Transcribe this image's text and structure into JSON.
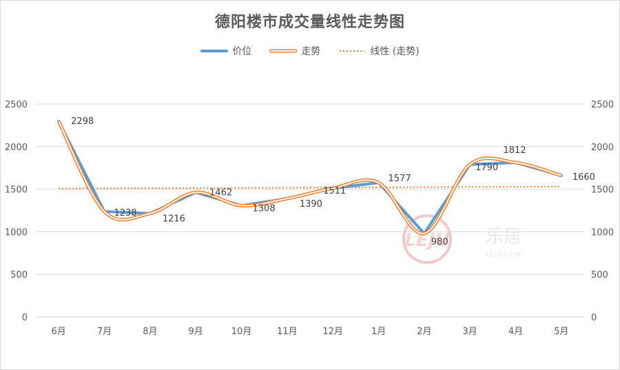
{
  "title": "德阳楼市成交量线性走势图",
  "legend": [
    {
      "name": "价位",
      "style": "solid-blue"
    },
    {
      "name": "走势",
      "style": "double-orange"
    },
    {
      "name": "线性 (走势)",
      "style": "dotted-orange"
    }
  ],
  "watermark": {
    "text": "乐居",
    "sub": "LEJU.COM"
  },
  "colors": {
    "price": "#5b9bd5",
    "trend": "#ed7d31",
    "grid": "#d9d9d9",
    "text": "#595959"
  },
  "chart_data": {
    "type": "line",
    "title": "德阳楼市成交量线性走势图",
    "categories": [
      "6月",
      "7月",
      "8月",
      "9月",
      "10月",
      "11月",
      "12月",
      "1月",
      "2月",
      "3月",
      "4月",
      "5月"
    ],
    "series": [
      {
        "name": "价位",
        "values": [
          2298,
          1238,
          1216,
          1462,
          1308,
          1390,
          1511,
          1577,
          980,
          1790,
          1812,
          1660
        ]
      },
      {
        "name": "走势",
        "values": [
          2298,
          1238,
          1216,
          1462,
          1308,
          1390,
          1511,
          1577,
          980,
          1790,
          1812,
          1660
        ],
        "smooth": true
      },
      {
        "name": "线性 (走势)",
        "type": "linear-trendline",
        "values": [
          1508,
          1510,
          1512,
          1514,
          1516,
          1518,
          1520,
          1522,
          1524,
          1526,
          1528,
          1530
        ]
      }
    ],
    "data_labels": [
      "2298",
      "1238",
      "1216",
      "1462",
      "1308",
      "1390",
      "1511",
      "1577",
      "980",
      "1790",
      "1812",
      "1660"
    ],
    "y_ticks": [
      "0",
      "500",
      "1000",
      "1500",
      "2000",
      "2500"
    ],
    "ylim": [
      0,
      2500
    ],
    "secondary_axis": true,
    "grid": true,
    "legend_position": "top"
  }
}
